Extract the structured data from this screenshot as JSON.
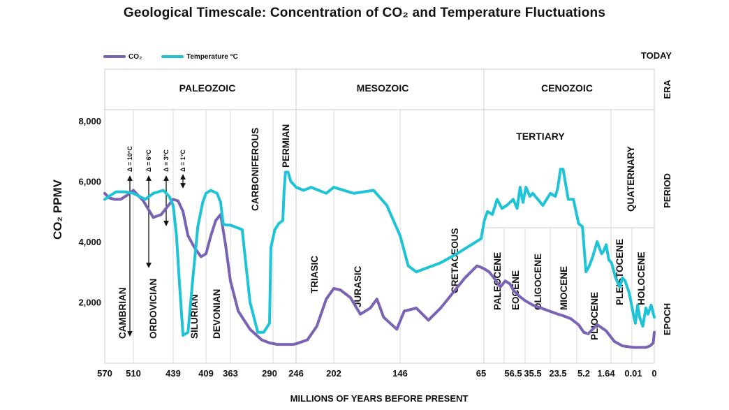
{
  "chart_data": {
    "type": "line",
    "title": "Geological Timescale: Concentration of CO₂ and Temperature Fluctuations",
    "xlabel": "MILLIONS OF YEARS BEFORE PRESENT",
    "ylabel": "CO₂ PPMV",
    "y_ticks": [
      "8,000",
      "6,000",
      "4,000",
      "2,000"
    ],
    "y_tick_values": [
      8000,
      6000,
      4000,
      2000
    ],
    "ylim": [
      0,
      8000
    ],
    "x_ticks": [
      "570",
      "510",
      "439",
      "409",
      "363",
      "290",
      "246",
      "202",
      "146",
      "65",
      "56.5",
      "35.5",
      "23.5",
      "5.2",
      "1.64",
      "0.01",
      "0"
    ],
    "today_label": "TODAY",
    "legend": [
      {
        "name": "CO₂",
        "color": "#7a62b5"
      },
      {
        "name": "Temperature °C",
        "color": "#1ec4d6"
      }
    ],
    "row_labels": {
      "era": "ERA",
      "period": "PERIOD",
      "epoch": "EPOCH"
    },
    "eras": [
      "PALEOZOIC",
      "MESOZOIC",
      "CENOZOIC"
    ],
    "periods": [
      "CAMBRIAN",
      "ORDOVICIAN",
      "SILURIAN",
      "DEVONIAN",
      "CARBONIFEROUS",
      "PERMIAN",
      "TRIASIC",
      "JURASIC",
      "CRETACEOUS",
      "TERTIARY",
      "QUATERNARY"
    ],
    "epochs": [
      "PALEOCENE",
      "EOCENE",
      "OLIGOCENE",
      "MIOCENE",
      "PLIOCENE",
      "PLEISTOCENE",
      "HOLOCENE"
    ],
    "annotations": [
      "Δ = 10°C",
      "Δ = 6°C",
      "Δ = 3°C",
      "Δ = 1°C"
    ],
    "series": [
      {
        "name": "CO₂",
        "x_index": [
          0,
          0.15,
          0.35,
          0.55,
          0.8,
          1,
          1.25,
          1.5,
          1.7,
          2,
          2.15,
          2.3,
          2.45,
          2.65,
          2.85,
          3,
          3.2,
          3.4,
          3.6,
          3.8,
          4,
          4.2,
          4.5,
          4.8,
          5,
          5.3,
          5.6,
          5.9,
          6,
          6.3,
          6.55,
          6.8,
          7,
          7.1,
          7.25,
          7.4,
          7.55,
          7.65,
          7.75,
          7.85,
          7.95,
          8.05,
          8.2,
          8.35,
          8.5,
          8.65,
          8.8,
          8.95,
          9,
          9.1,
          9.25,
          9.4,
          9.6,
          9.75,
          9.9,
          10,
          10.3,
          10.6,
          11,
          11.5,
          12,
          12.2,
          12.5,
          12.8,
          13,
          13.2,
          13.4,
          13.6,
          14,
          14.3,
          14.6,
          15,
          15.3,
          15.6,
          15.8,
          15.95,
          16
        ],
        "values": [
          5600,
          5450,
          5400,
          5400,
          5550,
          5700,
          5350,
          4800,
          4900,
          5400,
          5350,
          5000,
          4200,
          3800,
          3500,
          3600,
          4200,
          4700,
          4900,
          3900,
          2700,
          1700,
          1100,
          750,
          650,
          600,
          600,
          600,
          620,
          750,
          1200,
          2100,
          2450,
          2400,
          2150,
          1600,
          1800,
          2100,
          1500,
          1300,
          1100,
          1700,
          1800,
          1400,
          1800,
          2300,
          2800,
          3200,
          3150,
          3100,
          3000,
          2800,
          2500,
          2700,
          2600,
          2400,
          2200,
          2050,
          1900,
          1750,
          1600,
          1550,
          1450,
          1250,
          1000,
          950,
          1100,
          1250,
          1050,
          700,
          550,
          500,
          500,
          500,
          550,
          650,
          1000
        ]
      },
      {
        "name": "Temperature °C",
        "x_index": [
          0,
          0.15,
          0.4,
          0.7,
          1,
          1.3,
          1.5,
          1.75,
          1.9,
          2,
          2.1,
          2.2,
          2.3,
          2.45,
          2.6,
          2.75,
          2.9,
          3,
          3.2,
          3.45,
          3.6,
          3.7,
          3.8,
          4,
          4.3,
          4.5,
          4.7,
          4.85,
          5,
          5.05,
          5.2,
          5.35,
          5.5,
          5.55,
          5.6,
          5.7,
          5.8,
          6,
          6.2,
          6.4,
          6.6,
          6.8,
          7,
          7.3,
          7.6,
          7.8,
          8,
          8.1,
          8.2,
          8.3,
          8.5,
          8.7,
          9,
          9.1,
          9.2,
          9.35,
          9.5,
          9.65,
          9.8,
          10,
          10.2,
          10.35,
          10.5,
          10.65,
          10.85,
          11,
          11.2,
          11.4,
          11.55,
          11.7,
          11.9,
          12,
          12.1,
          12.2,
          12.4,
          12.6,
          12.8,
          12.95,
          13.1,
          13.25,
          13.4,
          13.6,
          13.8,
          13.9,
          14,
          14.1,
          14.2,
          14.35,
          14.5,
          14.6,
          14.7,
          14.85,
          15,
          15.1,
          15.2,
          15.3,
          15.45,
          15.6,
          15.7,
          15.85,
          16
        ],
        "values": [
          5400,
          5500,
          5650,
          5650,
          5600,
          5400,
          5600,
          5700,
          5500,
          5200,
          4200,
          2500,
          900,
          1000,
          2800,
          4500,
          5300,
          5600,
          5700,
          5600,
          5300,
          4600,
          4550,
          4550,
          4400,
          2000,
          1000,
          1000,
          1300,
          3800,
          4400,
          4600,
          4700,
          5700,
          6300,
          6300,
          6000,
          5800,
          5700,
          5800,
          5700,
          5600,
          5800,
          5600,
          5700,
          5200,
          4200,
          3200,
          3000,
          3100,
          3300,
          3600,
          4100,
          4700,
          5000,
          4900,
          5400,
          5100,
          5200,
          5400,
          5100,
          5800,
          5300,
          5800,
          5500,
          5600,
          5400,
          5200,
          5400,
          5600,
          5500,
          5800,
          6400,
          6400,
          5400,
          5400,
          4600,
          4500,
          3000,
          3200,
          3500,
          4000,
          3600,
          3700,
          3900,
          3400,
          3300,
          2800,
          2500,
          2800,
          2700,
          2300,
          1600,
          1300,
          1900,
          1500,
          1200,
          1800,
          1600,
          1900,
          1500
        ]
      }
    ]
  }
}
